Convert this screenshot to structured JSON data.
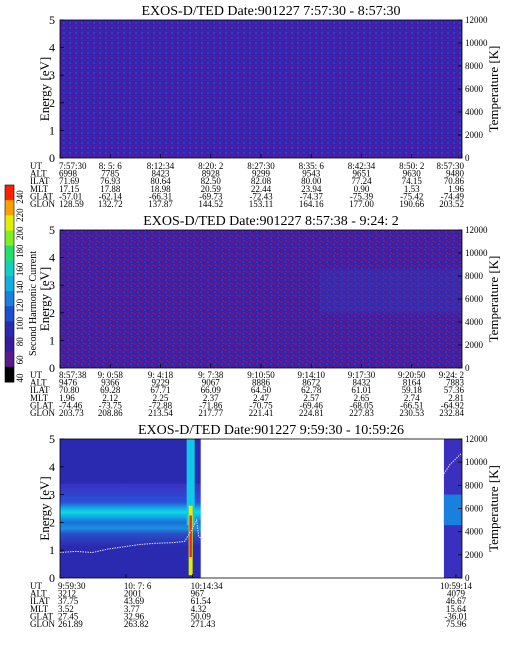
{
  "colorbar": {
    "label": "Second Harmonic Current",
    "ticks": [
      "40",
      "60",
      "80",
      "100",
      "120",
      "140",
      "160",
      "180",
      "200",
      "220",
      "240"
    ],
    "colors": [
      "#000000",
      "#5a1a8c",
      "#3a1a9c",
      "#2a2ab0",
      "#1a50d0",
      "#1a80e0",
      "#10b0e0",
      "#10d0c0",
      "#20e070",
      "#80f020",
      "#e0f000",
      "#ffa000",
      "#ff2000"
    ]
  },
  "row_labels": [
    "UT",
    "ALT",
    "ILAT",
    "MLT",
    "GLAT",
    "GLON"
  ],
  "chart_data": [
    {
      "type": "heatmap",
      "title": "EXOS-D/TED   Date:901227  7:57:30 - 8:57:30",
      "ylabel": "Energy [eV]",
      "y2label": "Temperature [K]",
      "ylim": [
        0,
        5
      ],
      "y2lim": [
        0,
        12000
      ],
      "yticks": [
        "0",
        "1",
        "2",
        "3",
        "4",
        "5"
      ],
      "y2ticks": [
        "0",
        "2000",
        "4000",
        "6000",
        "8000",
        "10000",
        "12000"
      ],
      "columns": [
        [
          "7:57:30",
          "6998",
          "71.69",
          "17.15",
          "-57.01",
          "128.59"
        ],
        [
          "8: 5: 6",
          "7785",
          "76.93",
          "17.88",
          "-62.14",
          "132.72"
        ],
        [
          "8:12:34",
          "8423",
          "80.64",
          "18.98",
          "-66.31",
          "137.87"
        ],
        [
          "8:20: 2",
          "8928",
          "82.50",
          "20.59",
          "-69.73",
          "144.52"
        ],
        [
          "8:27:30",
          "9299",
          "82.08",
          "22.44",
          "-72.43",
          "153.11"
        ],
        [
          "8:35: 6",
          "9543",
          "80.00",
          "23.94",
          "-74.37",
          "164.16"
        ],
        [
          "8:42:34",
          "9651",
          "77.24",
          "0.90",
          "-75.39",
          "177.00"
        ],
        [
          "8:50: 2",
          "9630",
          "74.15",
          "1.53",
          "-75.42",
          "190.66"
        ],
        [
          "8:57:30",
          "9480",
          "70.86",
          "1.96",
          "-74.49",
          "203.52"
        ]
      ]
    },
    {
      "type": "heatmap",
      "title": "EXOS-D/TED   Date:901227  8:57:38 - 9:24: 2",
      "ylabel": "Energy [eV]",
      "y2label": "Temperature [K]",
      "ylim": [
        0,
        5
      ],
      "y2lim": [
        0,
        12000
      ],
      "yticks": [
        "0",
        "1",
        "2",
        "3",
        "4",
        "5"
      ],
      "y2ticks": [
        "0",
        "2000",
        "4000",
        "6000",
        "8000",
        "10000",
        "12000"
      ],
      "columns": [
        [
          "8:57:38",
          "9476",
          "70.80",
          "1.96",
          "-74.46",
          "203.73"
        ],
        [
          "9: 0:58",
          "9366",
          "69.28",
          "2.12",
          "-73.75",
          "208.86"
        ],
        [
          "9: 4:18",
          "9229",
          "67.71",
          "2.25",
          "-72.88",
          "213.54"
        ],
        [
          "9: 7:38",
          "9067",
          "66.09",
          "2.37",
          "-71.86",
          "217.77"
        ],
        [
          "9:10:50",
          "8886",
          "64.50",
          "2.47",
          "-70.75",
          "221.41"
        ],
        [
          "9:14:10",
          "8672",
          "62.78",
          "2.57",
          "-69.46",
          "224.81"
        ],
        [
          "9:17:30",
          "8432",
          "61.01",
          "2.65",
          "-68.05",
          "227.83"
        ],
        [
          "9:20:50",
          "8164",
          "59.18",
          "2.74",
          "-66.51",
          "230.53"
        ],
        [
          "9:24: 2",
          "7883",
          "57.36",
          "2.81",
          "-64.92",
          "232.84"
        ]
      ]
    },
    {
      "type": "heatmap",
      "title": "EXOS-D/TED   Date:901227  9:59:30 - 10:59:26",
      "ylabel": "Energy [eV]",
      "y2label": "Temperature [K]",
      "ylim": [
        0,
        5
      ],
      "y2lim": [
        0,
        12000
      ],
      "yticks": [
        "0",
        "1",
        "2",
        "3",
        "4",
        "5"
      ],
      "y2ticks": [
        "0",
        "2000",
        "4000",
        "6000",
        "8000",
        "10000",
        "12000"
      ],
      "columns": [
        [
          "9:59:30",
          "3212",
          "37.75",
          "3.52",
          "27.45",
          "261.89"
        ],
        [
          "10: 7: 6",
          "2001",
          "43.69",
          "3.77",
          "32.96",
          "263.82"
        ],
        [
          "10:14:34",
          "967",
          "61.54",
          "4.32",
          "50.09",
          "271.43"
        ],
        [
          "10:59:14",
          "4079",
          "46.67",
          "15.64",
          "-36.01",
          "75.96"
        ]
      ],
      "temperature_trace": [
        {
          "t": 0.0,
          "temp": 2200
        },
        {
          "t": 0.04,
          "temp": 2300
        },
        {
          "t": 0.08,
          "temp": 2200
        },
        {
          "t": 0.12,
          "temp": 2500
        },
        {
          "t": 0.16,
          "temp": 2700
        },
        {
          "t": 0.2,
          "temp": 2900
        },
        {
          "t": 0.24,
          "temp": 3000
        },
        {
          "t": 0.28,
          "temp": 3050
        },
        {
          "t": 0.31,
          "temp": 3150
        },
        {
          "t": 0.33,
          "temp": 4300
        },
        {
          "t": 0.34,
          "temp": 5000
        },
        {
          "t": 0.345,
          "temp": 3600
        },
        {
          "t": 0.355,
          "temp": 3300
        }
      ],
      "temperature_trace_end": [
        {
          "t": 0.955,
          "temp": 9000
        },
        {
          "t": 0.97,
          "temp": 9800
        },
        {
          "t": 0.985,
          "temp": 10300
        },
        {
          "t": 1.0,
          "temp": 10800
        }
      ]
    }
  ]
}
